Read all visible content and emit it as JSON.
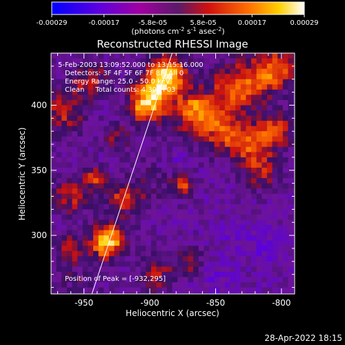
{
  "chart_data": {
    "type": "heatmap",
    "title": "Reconstructed RHESSI Image",
    "xlabel": "Heliocentric X (arcsec)",
    "ylabel": "Heliocentric Y (arcsec)",
    "xlim": [
      -975,
      -790
    ],
    "ylim": [
      255,
      440
    ],
    "xticks": [
      -950,
      -900,
      -850,
      -800
    ],
    "yticks": [
      300,
      350,
      400
    ],
    "xtick_labels": [
      "-950",
      "-900",
      "-850",
      "-800"
    ],
    "ytick_labels": [
      "300",
      "350",
      "400"
    ],
    "colorbar": {
      "range": [
        -0.00029,
        0.00029
      ],
      "ticks": [
        -0.00029,
        -0.00017,
        -5.8e-05,
        5.8e-05,
        0.00017,
        0.00029
      ],
      "tick_labels": [
        "-0.00029",
        "-0.00017",
        "-5.8e-05",
        "5.8e-05",
        "0.00017",
        "0.00029"
      ],
      "units_parts": [
        "(photons cm",
        "-2",
        " s",
        "-1",
        " asec",
        "-2",
        ")"
      ]
    },
    "info_lines": [
      "5-Feb-2003 13:09:52.000 to 13:15:16.000",
      "Detectors: 3F 4F 5F 6F 7F 8F, All 0",
      "Energy Range: 25.0 - 50.0 keV",
      "Clean     Total counts: 4.39E+03"
    ],
    "peak_text": "Position of Peak = [-932,295]",
    "limb_line": {
      "points": [
        [
          -944,
          255
        ],
        [
          -883,
          440
        ]
      ]
    },
    "blobs": [
      {
        "x": -932,
        "y": 295,
        "r": 8,
        "v": 0.00029
      },
      {
        "x": -895,
        "y": 410,
        "r": 12,
        "v": 0.00026
      },
      {
        "x": -885,
        "y": 425,
        "r": 10,
        "v": 0.00024
      },
      {
        "x": -905,
        "y": 398,
        "r": 8,
        "v": 0.00021
      },
      {
        "x": -865,
        "y": 395,
        "r": 10,
        "v": 0.0002
      },
      {
        "x": -845,
        "y": 380,
        "r": 12,
        "v": 0.00019
      },
      {
        "x": -825,
        "y": 370,
        "r": 10,
        "v": 0.00018
      },
      {
        "x": -805,
        "y": 380,
        "r": 10,
        "v": 0.00019
      },
      {
        "x": -835,
        "y": 410,
        "r": 10,
        "v": 0.00017
      },
      {
        "x": -815,
        "y": 420,
        "r": 12,
        "v": 0.00018
      },
      {
        "x": -800,
        "y": 430,
        "r": 10,
        "v": 0.00016
      },
      {
        "x": -815,
        "y": 350,
        "r": 10,
        "v": 0.00015
      },
      {
        "x": -875,
        "y": 338,
        "r": 6,
        "v": 0.0002
      },
      {
        "x": -942,
        "y": 345,
        "r": 6,
        "v": 0.00019
      },
      {
        "x": -960,
        "y": 330,
        "r": 10,
        "v": 0.00016
      },
      {
        "x": -920,
        "y": 330,
        "r": 8,
        "v": 0.00014
      },
      {
        "x": -965,
        "y": 395,
        "r": 12,
        "v": 0.00016
      },
      {
        "x": -945,
        "y": 420,
        "r": 10,
        "v": 0.00015
      },
      {
        "x": -960,
        "y": 290,
        "r": 8,
        "v": 0.00013
      },
      {
        "x": -895,
        "y": 270,
        "r": 10,
        "v": 0.00013
      },
      {
        "x": -870,
        "y": 280,
        "r": 8,
        "v": 0.00012
      },
      {
        "x": -925,
        "y": 375,
        "r": 8,
        "v": 0.00011
      },
      {
        "x": -835,
        "y": 300,
        "r": 8,
        "v": -5e-05
      },
      {
        "x": -880,
        "y": 360,
        "r": 10,
        "v": -6e-05
      },
      {
        "x": -810,
        "y": 290,
        "r": 10,
        "v": -6e-05
      },
      {
        "x": -850,
        "y": 265,
        "r": 10,
        "v": -5e-05
      }
    ]
  }
}
